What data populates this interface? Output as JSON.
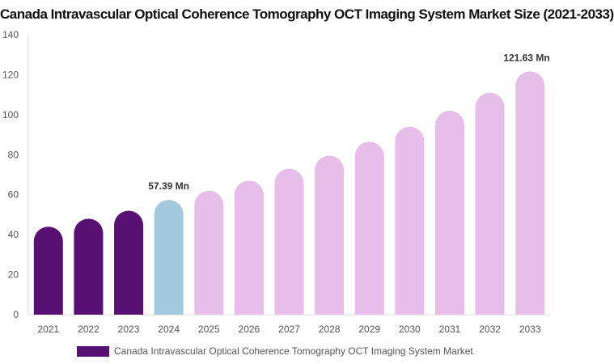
{
  "title": "Canada Intravascular Optical Coherence Tomography OCT Imaging System Market Size (2021-2033)",
  "colors": {
    "historical": "#561173",
    "current": "#a3c9df",
    "forecast": "#e6bee9",
    "legend": "#561173"
  },
  "legend": {
    "label": "Canada Intravascular Optical Coherence Tomography OCT Imaging System Market"
  },
  "chart_data": {
    "type": "bar",
    "categories": [
      "2021",
      "2022",
      "2023",
      "2024",
      "2025",
      "2026",
      "2027",
      "2028",
      "2029",
      "2030",
      "2031",
      "2032",
      "2033"
    ],
    "series": [
      {
        "name": "Canada Intravascular Optical Coherence Tomography OCT Imaging System Market",
        "values": [
          44,
          48,
          52,
          57.39,
          62,
          67,
          73,
          79.5,
          86.5,
          94,
          102,
          111,
          121.63
        ]
      }
    ],
    "ylim": [
      0,
      140
    ],
    "yticks": [
      0,
      20,
      40,
      60,
      80,
      100,
      120,
      140
    ],
    "data_labels": [
      {
        "index": 3,
        "text": "57.39 Mn"
      },
      {
        "index": 12,
        "text": "121.63 Mn"
      }
    ],
    "bar_roles": [
      "historical",
      "historical",
      "historical",
      "current",
      "forecast",
      "forecast",
      "forecast",
      "forecast",
      "forecast",
      "forecast",
      "forecast",
      "forecast",
      "forecast"
    ],
    "grid": false
  }
}
